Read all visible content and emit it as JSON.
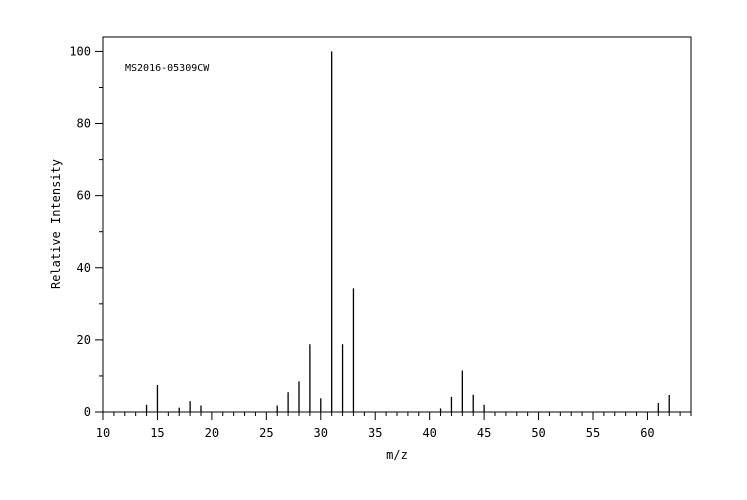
{
  "chart_data": {
    "type": "bar",
    "annotation": "MS2016-05309CW",
    "xlabel": "m/z",
    "ylabel": "Relative Intensity",
    "xlim": [
      10,
      64
    ],
    "ylim": [
      0,
      104
    ],
    "x_ticks": [
      10,
      15,
      20,
      25,
      30,
      35,
      40,
      45,
      50,
      55,
      60
    ],
    "y_ticks": [
      0,
      20,
      40,
      60,
      80,
      100
    ],
    "grid": false,
    "series": [
      {
        "x": [
          14,
          15,
          17,
          18,
          19,
          26,
          27,
          28,
          29,
          30,
          31,
          32,
          33,
          41,
          42,
          43,
          44,
          45,
          61,
          62
        ],
        "values": [
          2,
          7.5,
          1.2,
          3,
          1.8,
          1.8,
          5.5,
          8.5,
          18.8,
          3.8,
          100,
          18.8,
          34.3,
          1,
          4.2,
          11.5,
          4.8,
          2,
          2.5,
          4.7
        ]
      }
    ]
  }
}
